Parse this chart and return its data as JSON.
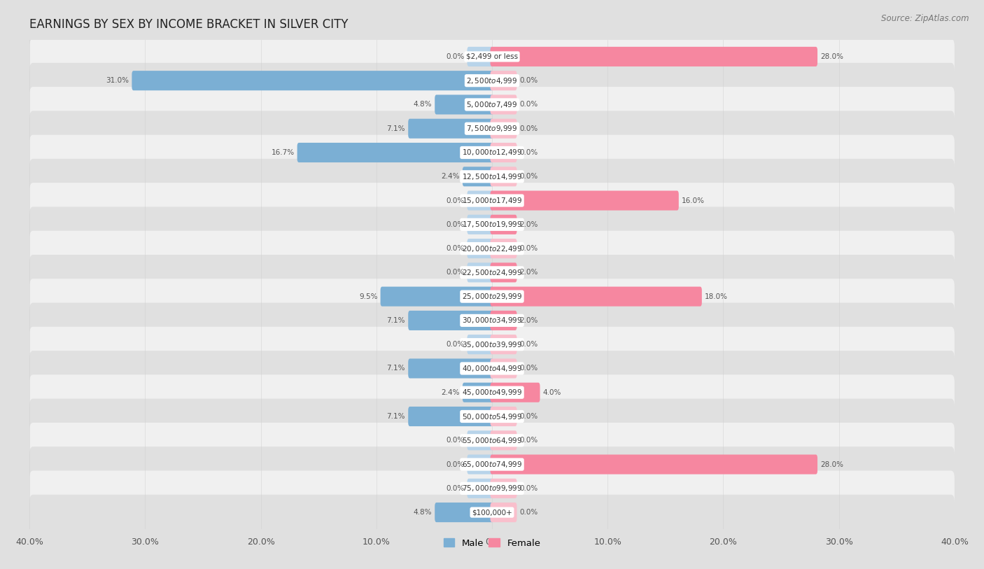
{
  "title": "EARNINGS BY SEX BY INCOME BRACKET IN SILVER CITY",
  "source": "Source: ZipAtlas.com",
  "categories": [
    "$2,499 or less",
    "$2,500 to $4,999",
    "$5,000 to $7,499",
    "$7,500 to $9,999",
    "$10,000 to $12,499",
    "$12,500 to $14,999",
    "$15,000 to $17,499",
    "$17,500 to $19,999",
    "$20,000 to $22,499",
    "$22,500 to $24,999",
    "$25,000 to $29,999",
    "$30,000 to $34,999",
    "$35,000 to $39,999",
    "$40,000 to $44,999",
    "$45,000 to $49,999",
    "$50,000 to $54,999",
    "$55,000 to $64,999",
    "$65,000 to $74,999",
    "$75,000 to $99,999",
    "$100,000+"
  ],
  "male": [
    0.0,
    31.0,
    4.8,
    7.1,
    16.7,
    2.4,
    0.0,
    0.0,
    0.0,
    0.0,
    9.5,
    7.1,
    0.0,
    7.1,
    2.4,
    7.1,
    0.0,
    0.0,
    0.0,
    4.8
  ],
  "female": [
    28.0,
    0.0,
    0.0,
    0.0,
    0.0,
    0.0,
    16.0,
    2.0,
    0.0,
    2.0,
    18.0,
    2.0,
    0.0,
    0.0,
    4.0,
    0.0,
    0.0,
    28.0,
    0.0,
    0.0
  ],
  "male_color": "#7bafd4",
  "female_color": "#f687a0",
  "male_min_color": "#b8d4ea",
  "female_min_color": "#f9bfcc",
  "xlim": 40.0,
  "bg_color": "#e8e8e8",
  "row_color_even": "#f0f0f0",
  "row_color_odd": "#e0e0e0",
  "label_color": "#555555",
  "value_color": "#555555",
  "title_fontsize": 12,
  "source_fontsize": 8.5,
  "tick_fontsize": 9,
  "bar_height": 0.52,
  "min_bar": 2.0
}
